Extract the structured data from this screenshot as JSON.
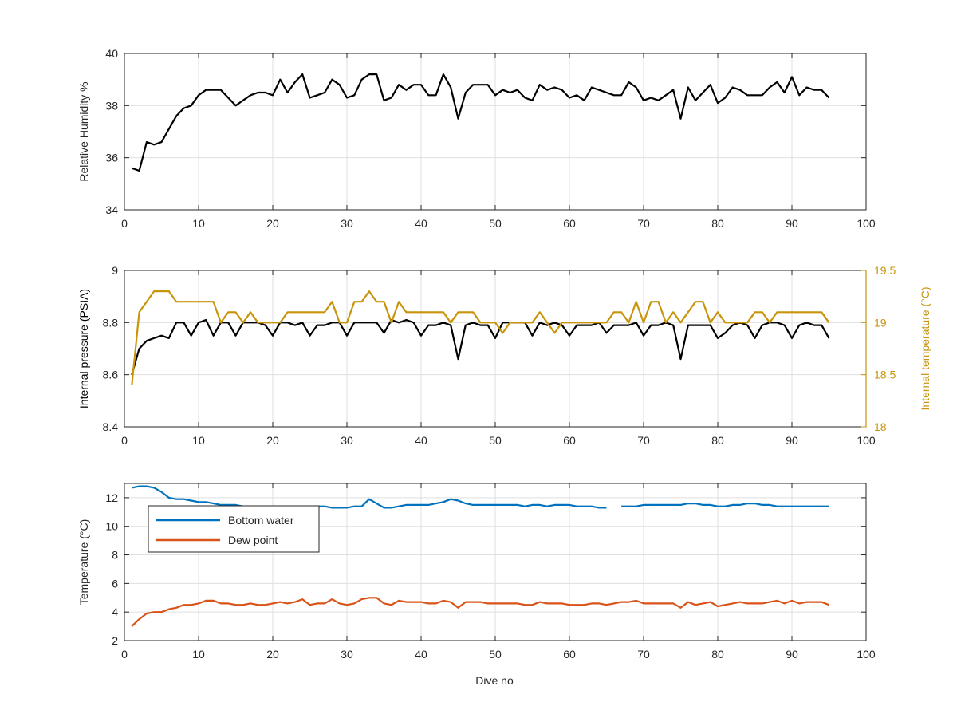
{
  "figure": {
    "xlabel": "Dive no"
  },
  "chart_data": [
    {
      "type": "line",
      "xlabel": "",
      "ylabel": "Relative Humidity %",
      "xlim": [
        0,
        100
      ],
      "ylim": [
        34,
        40
      ],
      "xticks": [
        0,
        10,
        20,
        30,
        40,
        50,
        60,
        70,
        80,
        90,
        100
      ],
      "yticks": [
        34,
        36,
        38,
        40
      ],
      "grid": true,
      "series": [
        {
          "name": "",
          "color": "#000000",
          "x": [
            1,
            2,
            3,
            4,
            5,
            6,
            7,
            8,
            9,
            10,
            11,
            12,
            13,
            14,
            15,
            16,
            17,
            18,
            19,
            20,
            21,
            22,
            23,
            24,
            25,
            26,
            27,
            28,
            29,
            30,
            31,
            32,
            33,
            34,
            35,
            36,
            37,
            38,
            39,
            40,
            41,
            42,
            43,
            44,
            45,
            46,
            47,
            48,
            49,
            50,
            51,
            52,
            53,
            54,
            55,
            56,
            57,
            58,
            59,
            60,
            61,
            62,
            63,
            64,
            65,
            66,
            67,
            68,
            69,
            70,
            71,
            72,
            73,
            74,
            75,
            76,
            77,
            78,
            79,
            80,
            81,
            82,
            83,
            84,
            85,
            86,
            87,
            88,
            89,
            90,
            91,
            92,
            93,
            94,
            95
          ],
          "y": [
            35.6,
            35.5,
            36.6,
            36.5,
            36.6,
            37.1,
            37.6,
            37.9,
            38.0,
            38.4,
            38.6,
            38.6,
            38.6,
            38.3,
            38.0,
            38.2,
            38.4,
            38.5,
            38.5,
            38.4,
            39.0,
            38.5,
            38.9,
            39.2,
            38.3,
            38.4,
            38.5,
            39.0,
            38.8,
            38.3,
            38.4,
            39.0,
            39.2,
            39.2,
            38.2,
            38.3,
            38.8,
            38.6,
            38.8,
            38.8,
            38.4,
            38.4,
            39.2,
            38.7,
            37.5,
            38.5,
            38.8,
            38.8,
            38.8,
            38.4,
            38.6,
            38.5,
            38.6,
            38.3,
            38.2,
            38.8,
            38.6,
            38.7,
            38.6,
            38.3,
            38.4,
            38.2,
            38.7,
            38.6,
            38.5,
            38.4,
            38.4,
            38.9,
            38.7,
            38.2,
            38.3,
            38.2,
            38.4,
            38.6,
            37.5,
            38.7,
            38.2,
            38.5,
            38.8,
            38.1,
            38.3,
            38.7,
            38.6,
            38.4,
            38.4,
            38.4,
            38.7,
            38.9,
            38.5,
            39.1,
            38.4,
            38.7,
            38.6,
            38.6,
            38.3
          ]
        }
      ]
    },
    {
      "type": "line",
      "xlabel": "",
      "ylabel": "Internal pressure (PSIA)",
      "ylabel_right": "Internal temperature (°C)",
      "xlim": [
        0,
        100
      ],
      "ylim": [
        8.4,
        9
      ],
      "ylim_right": [
        18,
        19.5
      ],
      "xticks": [
        0,
        10,
        20,
        30,
        40,
        50,
        60,
        70,
        80,
        90,
        100
      ],
      "yticks": [
        "8.4",
        "8.6",
        "8.8",
        "9"
      ],
      "yticks_right": [
        "18",
        "18.5",
        "19",
        "19.5"
      ],
      "grid": true,
      "series": [
        {
          "name": "",
          "axis": "left",
          "color": "#000000",
          "x": [
            1,
            2,
            3,
            4,
            5,
            6,
            7,
            8,
            9,
            10,
            11,
            12,
            13,
            14,
            15,
            16,
            17,
            18,
            19,
            20,
            21,
            22,
            23,
            24,
            25,
            26,
            27,
            28,
            29,
            30,
            31,
            32,
            33,
            34,
            35,
            36,
            37,
            38,
            39,
            40,
            41,
            42,
            43,
            44,
            45,
            46,
            47,
            48,
            49,
            50,
            51,
            52,
            53,
            54,
            55,
            56,
            57,
            58,
            59,
            60,
            61,
            62,
            63,
            64,
            65,
            66,
            67,
            68,
            69,
            70,
            71,
            72,
            73,
            74,
            75,
            76,
            77,
            78,
            79,
            80,
            81,
            82,
            83,
            84,
            85,
            86,
            87,
            88,
            89,
            90,
            91,
            92,
            93,
            94,
            95
          ],
          "y": [
            8.6,
            8.7,
            8.73,
            8.74,
            8.75,
            8.74,
            8.8,
            8.8,
            8.75,
            8.8,
            8.81,
            8.75,
            8.8,
            8.8,
            8.75,
            8.8,
            8.8,
            8.8,
            8.79,
            8.75,
            8.8,
            8.8,
            8.79,
            8.8,
            8.75,
            8.79,
            8.79,
            8.8,
            8.8,
            8.75,
            8.8,
            8.8,
            8.8,
            8.8,
            8.76,
            8.81,
            8.8,
            8.81,
            8.8,
            8.75,
            8.79,
            8.79,
            8.8,
            8.79,
            8.66,
            8.79,
            8.8,
            8.79,
            8.79,
            8.74,
            8.8,
            8.8,
            8.8,
            8.8,
            8.75,
            8.8,
            8.79,
            8.8,
            8.79,
            8.75,
            8.79,
            8.79,
            8.79,
            8.8,
            8.76,
            8.79,
            8.79,
            8.79,
            8.8,
            8.75,
            8.79,
            8.79,
            8.8,
            8.79,
            8.66,
            8.79,
            8.79,
            8.79,
            8.79,
            8.74,
            8.76,
            8.79,
            8.8,
            8.79,
            8.74,
            8.79,
            8.8,
            8.8,
            8.79,
            8.74,
            8.79,
            8.8,
            8.79,
            8.79,
            8.74
          ]
        },
        {
          "name": "",
          "axis": "right",
          "color": "#c8940a",
          "x": [
            1,
            2,
            3,
            4,
            5,
            6,
            7,
            8,
            9,
            10,
            11,
            12,
            13,
            14,
            15,
            16,
            17,
            18,
            19,
            20,
            21,
            22,
            23,
            24,
            25,
            26,
            27,
            28,
            29,
            30,
            31,
            32,
            33,
            34,
            35,
            36,
            37,
            38,
            39,
            40,
            41,
            42,
            43,
            44,
            45,
            46,
            47,
            48,
            49,
            50,
            51,
            52,
            53,
            54,
            55,
            56,
            57,
            58,
            59,
            60,
            61,
            62,
            63,
            64,
            65,
            66,
            67,
            68,
            69,
            70,
            71,
            72,
            73,
            74,
            75,
            76,
            77,
            78,
            79,
            80,
            81,
            82,
            83,
            84,
            85,
            86,
            87,
            88,
            89,
            90,
            91,
            92,
            93,
            94,
            95
          ],
          "y": [
            18.4,
            19.1,
            19.2,
            19.3,
            19.3,
            19.3,
            19.2,
            19.2,
            19.2,
            19.2,
            19.2,
            19.2,
            19.0,
            19.1,
            19.1,
            19.0,
            19.1,
            19.0,
            19.0,
            19.0,
            19.0,
            19.1,
            19.1,
            19.1,
            19.1,
            19.1,
            19.1,
            19.2,
            19.0,
            19.0,
            19.2,
            19.2,
            19.3,
            19.2,
            19.2,
            19.0,
            19.2,
            19.1,
            19.1,
            19.1,
            19.1,
            19.1,
            19.1,
            19.0,
            19.1,
            19.1,
            19.1,
            19.0,
            19.0,
            19.0,
            18.9,
            19.0,
            19.0,
            19.0,
            19.0,
            19.1,
            19.0,
            18.9,
            19.0,
            19.0,
            19.0,
            19.0,
            19.0,
            19.0,
            19.0,
            19.1,
            19.1,
            19.0,
            19.2,
            19.0,
            19.2,
            19.2,
            19.0,
            19.1,
            19.0,
            19.1,
            19.2,
            19.2,
            19.0,
            19.1,
            19.0,
            19.0,
            19.0,
            19.0,
            19.1,
            19.1,
            19.0,
            19.1,
            19.1,
            19.1,
            19.1,
            19.1,
            19.1,
            19.1,
            19.0
          ]
        }
      ]
    },
    {
      "type": "line",
      "xlabel": "Dive no",
      "ylabel": "Temperature (°C)",
      "xlim": [
        0,
        100
      ],
      "ylim": [
        2,
        13
      ],
      "xticks": [
        0,
        10,
        20,
        30,
        40,
        50,
        60,
        70,
        80,
        90,
        100
      ],
      "yticks": [
        2,
        4,
        6,
        8,
        10,
        12
      ],
      "grid": true,
      "legend": {
        "position": "top-left"
      },
      "series": [
        {
          "name": "Bottom water",
          "color": "#0072bd",
          "x": [
            1,
            2,
            3,
            4,
            5,
            6,
            7,
            8,
            9,
            10,
            11,
            12,
            13,
            14,
            15,
            16,
            17,
            18,
            19,
            20,
            21,
            22,
            23,
            24,
            25,
            26,
            27,
            28,
            29,
            30,
            31,
            32,
            33,
            34,
            35,
            36,
            37,
            38,
            39,
            40,
            41,
            42,
            43,
            44,
            45,
            46,
            47,
            48,
            49,
            50,
            51,
            52,
            53,
            54,
            55,
            56,
            57,
            58,
            59,
            60,
            61,
            62,
            63,
            64,
            65,
            66,
            67,
            68,
            69,
            70,
            71,
            72,
            73,
            74,
            75,
            76,
            77,
            78,
            79,
            80,
            81,
            82,
            83,
            84,
            85,
            86,
            87,
            88,
            89,
            90,
            91,
            92,
            93,
            94,
            95
          ],
          "y": [
            12.7,
            12.8,
            12.8,
            12.7,
            12.4,
            12.0,
            11.9,
            11.9,
            11.8,
            11.7,
            11.7,
            11.6,
            11.5,
            11.5,
            11.5,
            11.4,
            11.4,
            11.4,
            11.4,
            11.4,
            11.4,
            11.4,
            11.4,
            11.4,
            11.4,
            11.4,
            11.4,
            11.3,
            11.3,
            11.3,
            11.4,
            11.4,
            11.9,
            11.6,
            11.3,
            11.3,
            11.4,
            11.5,
            11.5,
            11.5,
            11.5,
            11.6,
            11.7,
            11.9,
            11.8,
            11.6,
            11.5,
            11.5,
            11.5,
            11.5,
            11.5,
            11.5,
            11.5,
            11.4,
            11.5,
            11.5,
            11.4,
            11.5,
            11.5,
            11.5,
            11.4,
            11.4,
            11.4,
            11.3,
            11.3,
            null,
            11.4,
            11.4,
            11.4,
            11.5,
            11.5,
            11.5,
            11.5,
            11.5,
            11.5,
            11.6,
            11.6,
            11.5,
            11.5,
            11.4,
            11.4,
            11.5,
            11.5,
            11.6,
            11.6,
            11.5,
            11.5,
            11.4,
            11.4,
            11.4,
            11.4,
            11.4,
            11.4,
            11.4,
            11.4
          ]
        },
        {
          "name": "Dew point",
          "color": "#d95319",
          "x": [
            1,
            2,
            3,
            4,
            5,
            6,
            7,
            8,
            9,
            10,
            11,
            12,
            13,
            14,
            15,
            16,
            17,
            18,
            19,
            20,
            21,
            22,
            23,
            24,
            25,
            26,
            27,
            28,
            29,
            30,
            31,
            32,
            33,
            34,
            35,
            36,
            37,
            38,
            39,
            40,
            41,
            42,
            43,
            44,
            45,
            46,
            47,
            48,
            49,
            50,
            51,
            52,
            53,
            54,
            55,
            56,
            57,
            58,
            59,
            60,
            61,
            62,
            63,
            64,
            65,
            66,
            67,
            68,
            69,
            70,
            71,
            72,
            73,
            74,
            75,
            76,
            77,
            78,
            79,
            80,
            81,
            82,
            83,
            84,
            85,
            86,
            87,
            88,
            89,
            90,
            91,
            92,
            93,
            94,
            95
          ],
          "y": [
            3.0,
            3.5,
            3.9,
            4.0,
            4.0,
            4.2,
            4.3,
            4.5,
            4.5,
            4.6,
            4.8,
            4.8,
            4.6,
            4.6,
            4.5,
            4.5,
            4.6,
            4.5,
            4.5,
            4.6,
            4.7,
            4.6,
            4.7,
            4.9,
            4.5,
            4.6,
            4.6,
            4.9,
            4.6,
            4.5,
            4.6,
            4.9,
            5.0,
            5.0,
            4.6,
            4.5,
            4.8,
            4.7,
            4.7,
            4.7,
            4.6,
            4.6,
            4.8,
            4.7,
            4.3,
            4.7,
            4.7,
            4.7,
            4.6,
            4.6,
            4.6,
            4.6,
            4.6,
            4.5,
            4.5,
            4.7,
            4.6,
            4.6,
            4.6,
            4.5,
            4.5,
            4.5,
            4.6,
            4.6,
            4.5,
            4.6,
            4.7,
            4.7,
            4.8,
            4.6,
            4.6,
            4.6,
            4.6,
            4.6,
            4.3,
            4.7,
            4.5,
            4.6,
            4.7,
            4.4,
            4.5,
            4.6,
            4.7,
            4.6,
            4.6,
            4.6,
            4.7,
            4.8,
            4.6,
            4.8,
            4.6,
            4.7,
            4.7,
            4.7,
            4.5
          ]
        }
      ]
    }
  ]
}
